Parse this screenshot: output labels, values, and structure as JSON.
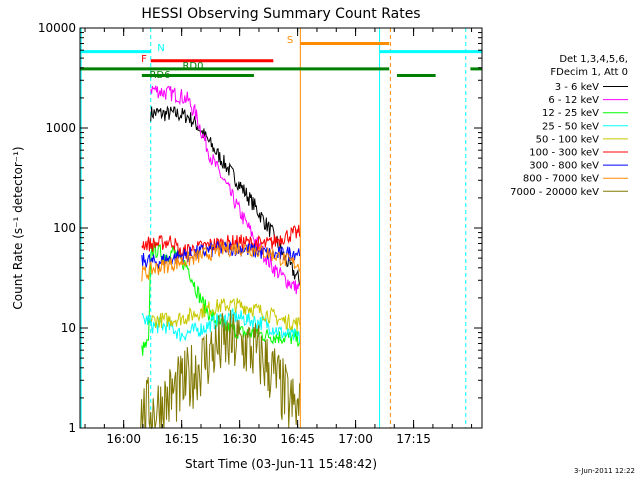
{
  "chart_data": {
    "type": "line",
    "title": "HESSI Observing Summary Count Rates",
    "xlabel": "Start Time (03-Jun-11 15:48:42)",
    "ylabel": "Count Rate (s⁻¹ detector⁻¹)",
    "xlim": [
      0,
      104
    ],
    "ylim": [
      1,
      10000
    ],
    "yscale": "log",
    "x_unit": "minutes since 15:48:42",
    "x_ticks": [
      {
        "x": 11.3,
        "label": "16:00"
      },
      {
        "x": 26.3,
        "label": "16:15"
      },
      {
        "x": 41.3,
        "label": "16:30"
      },
      {
        "x": 56.3,
        "label": "16:45"
      },
      {
        "x": 71.3,
        "label": "17:00"
      },
      {
        "x": 86.3,
        "label": "17:15"
      }
    ],
    "y_ticks": [
      {
        "y": 1,
        "label": "1"
      },
      {
        "y": 10,
        "label": "10"
      },
      {
        "y": 100,
        "label": "100"
      },
      {
        "y": 1000,
        "label": "1000"
      },
      {
        "y": 10000,
        "label": "10000"
      }
    ],
    "legend": {
      "placement": "right",
      "header": [
        "Det 1,3,4,5,6,",
        "FDecim 1, Att 0"
      ]
    },
    "series": [
      {
        "name": "3 - 6 keV",
        "color": "#000000",
        "x": [
          18.3,
          20,
          22,
          24,
          26,
          28,
          30,
          33,
          36,
          40,
          45,
          50,
          53,
          55.5,
          56.8
        ],
        "y": [
          1400,
          1420,
          1380,
          1400,
          1360,
          1300,
          1100,
          760,
          520,
          320,
          170,
          85,
          50,
          35,
          30
        ]
      },
      {
        "name": "6 - 12 keV",
        "color": "#ff00ff",
        "x": [
          18.3,
          20,
          22,
          24,
          26,
          28,
          30,
          32,
          34,
          38,
          42,
          46,
          50,
          53,
          55.5,
          56.8
        ],
        "y": [
          2500,
          2380,
          2250,
          2200,
          2100,
          1900,
          1350,
          800,
          500,
          260,
          130,
          68,
          40,
          31,
          26,
          25
        ]
      },
      {
        "name": "12 - 25 keV",
        "color": "#00ff00",
        "x": [
          16,
          17.8,
          18.3,
          20,
          22,
          24,
          26,
          28,
          30,
          32,
          34,
          36,
          38,
          40,
          42,
          45,
          48,
          51,
          54,
          56.8
        ],
        "y": [
          6,
          7,
          60,
          60,
          52,
          58,
          48,
          40,
          25,
          17,
          13,
          11,
          10,
          9.5,
          9,
          8.8,
          8.5,
          8.2,
          8,
          7.8
        ]
      },
      {
        "name": "25 - 50 keV",
        "color": "#00ffff",
        "x": [
          16,
          17.8,
          18.3,
          20,
          22,
          24,
          26,
          28,
          30,
          32,
          34,
          36,
          38,
          40,
          42,
          44,
          46,
          48,
          50,
          52,
          54,
          56.8
        ],
        "y": [
          12,
          12,
          10.5,
          10.5,
          10.5,
          10,
          8.5,
          9,
          9.5,
          10,
          11,
          12,
          12.5,
          13,
          12.5,
          12,
          11.5,
          11,
          10,
          9,
          8.5,
          8
        ]
      },
      {
        "name": "50 - 100 keV",
        "color": "#c8c800",
        "x": [
          18.3,
          22,
          26,
          28,
          30,
          32,
          34,
          36,
          38,
          40,
          42,
          44,
          46,
          48,
          50,
          52,
          54,
          56.8
        ],
        "y": [
          12,
          12,
          12.5,
          13,
          14,
          15,
          16,
          16.5,
          17,
          17,
          16.5,
          16,
          15,
          14,
          13,
          12,
          11.5,
          11
        ]
      },
      {
        "name": "100 - 300 keV",
        "color": "#ff0000",
        "x": [
          16,
          17.8,
          18.3,
          20,
          22,
          24,
          26,
          28,
          30,
          32,
          34,
          36,
          38,
          40,
          42,
          44,
          46,
          48,
          50,
          52,
          54,
          56.8
        ],
        "y": [
          70,
          70,
          68,
          70,
          72,
          75,
          55,
          60,
          62,
          65,
          68,
          70,
          71,
          72,
          72,
          71,
          70,
          68,
          72,
          80,
          85,
          90
        ]
      },
      {
        "name": "300 - 800 keV",
        "color": "#0000ff",
        "x": [
          16,
          17.8,
          18.3,
          20,
          22,
          24,
          26,
          28,
          30,
          32,
          34,
          36,
          38,
          40,
          42,
          44,
          46,
          48,
          50,
          52,
          54,
          56.8
        ],
        "y": [
          47,
          48,
          45,
          46,
          48,
          50,
          52,
          54,
          56,
          58,
          60,
          62,
          63,
          63,
          62,
          60,
          58,
          56,
          54,
          54,
          56,
          58
        ]
      },
      {
        "name": "800 - 7000 keV",
        "color": "#ff8c00",
        "x": [
          16,
          17.8,
          18.3,
          20,
          22,
          24,
          26,
          28,
          30,
          32,
          34,
          36,
          38,
          40,
          42,
          44,
          46,
          48,
          50,
          52,
          54,
          56.8
        ],
        "y": [
          35,
          36,
          38,
          40,
          42,
          44,
          46,
          48,
          51,
          54,
          57,
          60,
          62,
          63,
          63,
          62,
          60,
          57,
          54,
          50,
          46,
          43
        ]
      },
      {
        "name": "7000 - 20000 keV",
        "color": "#807800",
        "x": [
          15.5,
          17.8,
          18.3,
          20,
          22,
          24,
          26,
          28,
          30,
          32,
          34,
          36,
          38,
          40,
          42,
          44,
          46,
          48,
          50,
          52,
          54,
          56.8
        ],
        "y": [
          1.3,
          1.5,
          1.5,
          1.6,
          1.8,
          2.2,
          2.5,
          3,
          3.8,
          4.8,
          5.8,
          6.5,
          7,
          7,
          6.8,
          6.2,
          5.5,
          4.5,
          3.5,
          2.5,
          1.8,
          1.4
        ]
      }
    ],
    "flags": [
      {
        "label": "N",
        "color": "#00ffff",
        "y": 5800,
        "segments": [
          [
            0,
            18.3
          ],
          [
            77.5,
            104
          ]
        ]
      },
      {
        "label": "S",
        "color": "#ff8c00",
        "y": 7000,
        "segments": [
          [
            57,
            80
          ]
        ]
      },
      {
        "label": "F",
        "color": "#ff0000",
        "y": 4700,
        "segments": [
          [
            18.3,
            50
          ]
        ]
      },
      {
        "label": "RD0",
        "color": "#008000",
        "y": 3900,
        "segments": [
          [
            0,
            80
          ],
          [
            101,
            104
          ]
        ]
      },
      {
        "label": "RD6",
        "color": "#008000",
        "y": 3350,
        "segments": [
          [
            16,
            45
          ],
          [
            82,
            92
          ]
        ]
      }
    ],
    "vertical_markers": [
      {
        "x": 0.3,
        "color": "#00ffff",
        "style": "solid"
      },
      {
        "x": 18.3,
        "color": "#00ffff",
        "style": "dashed"
      },
      {
        "x": 57,
        "color": "#ff8c00",
        "style": "solid"
      },
      {
        "x": 77.5,
        "color": "#00ffff",
        "style": "solid"
      },
      {
        "x": 80.3,
        "color": "#ff8c00",
        "style": "dashed"
      },
      {
        "x": 99.8,
        "color": "#00ffff",
        "style": "dashed"
      }
    ],
    "footer_timestamp": "3-Jun-2011 12:22"
  }
}
